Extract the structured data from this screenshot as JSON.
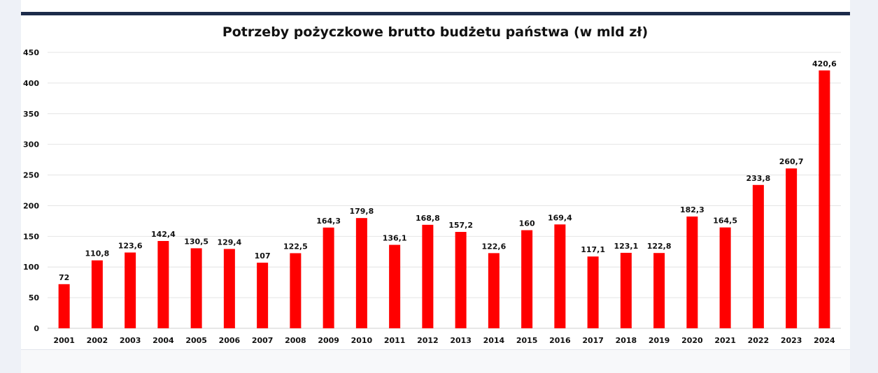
{
  "chart_data": {
    "type": "bar",
    "title": "Potrzeby pożyczkowe brutto budżetu państwa (w mld zł)",
    "xlabel": "",
    "ylabel": "",
    "ylim": [
      0,
      450
    ],
    "yticks": [
      "0",
      "50",
      "100",
      "150",
      "200",
      "250",
      "300",
      "350",
      "400",
      "450"
    ],
    "categories": [
      "2001",
      "2002",
      "2003",
      "2004",
      "2005",
      "2006",
      "2007",
      "2008",
      "2009",
      "2010",
      "2011",
      "2012",
      "2013",
      "2014",
      "2015",
      "2016",
      "2017",
      "2018",
      "2019",
      "2020",
      "2021",
      "2022",
      "2023",
      "2024"
    ],
    "values": [
      72,
      110.8,
      123.6,
      142.4,
      130.5,
      129.4,
      107,
      122.5,
      164.3,
      179.8,
      136.1,
      168.8,
      157.2,
      122.6,
      160,
      169.4,
      117.1,
      123.1,
      122.8,
      182.3,
      164.5,
      233.8,
      260.7,
      420.6
    ],
    "value_labels": [
      "72",
      "110,8",
      "123,6",
      "142,4",
      "130,5",
      "129,4",
      "107",
      "122,5",
      "164,3",
      "179,8",
      "136,1",
      "168,8",
      "157,2",
      "122,6",
      "160",
      "169,4",
      "117,1",
      "123,1",
      "122,8",
      "182,3",
      "164,5",
      "233,8",
      "260,7",
      "420,6"
    ],
    "bar_color": "#ff0000",
    "grid": true,
    "legend": "none"
  }
}
